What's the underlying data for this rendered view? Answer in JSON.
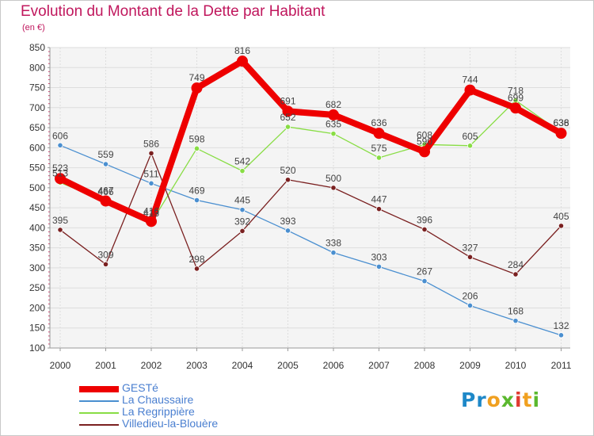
{
  "title": "Evolution du Montant de la Dette par Habitant",
  "subtitle": "(en €)",
  "logo_text": "Proxiti",
  "colors": {
    "title": "#c0175d",
    "axis": "#999999",
    "grid": "#dddddd",
    "plot_bg": "#f4f4f4",
    "tick_text": "#333333",
    "label_text": "#444444",
    "logo_letters": [
      "#1e88c8",
      "#1e88c8",
      "#f0a020",
      "#5bb82e",
      "#e03a30",
      "#f0a020",
      "#5bb82e"
    ]
  },
  "chart_data": {
    "type": "line",
    "xlabel": "",
    "ylabel": "",
    "ylim": [
      100,
      850
    ],
    "yticks": [
      100,
      150,
      200,
      250,
      300,
      350,
      400,
      450,
      500,
      550,
      600,
      650,
      700,
      750,
      800,
      850
    ],
    "x": [
      "2000",
      "2001",
      "2002",
      "2003",
      "2004",
      "2005",
      "2006",
      "2007",
      "2008",
      "2009",
      "2010",
      "2011"
    ],
    "grid": true,
    "legend_position": "bottom-left",
    "series": [
      {
        "name": "GESTé",
        "color": "#ee0000",
        "values": [
          523,
          467,
          416,
          749,
          816,
          691,
          682,
          636,
          590,
          744,
          699,
          636
        ],
        "labels": [
          "523",
          "467",
          "416",
          "749",
          "816",
          "691",
          "682",
          "636",
          "590",
          "744",
          "699",
          "636"
        ]
      },
      {
        "name": "La Chaussaire",
        "color": "#4a8fd0",
        "values": [
          606,
          559,
          511,
          469,
          445,
          393,
          338,
          303,
          267,
          206,
          168,
          132
        ],
        "labels": [
          "606",
          "559",
          "511",
          "469",
          "445",
          "393",
          "338",
          "303",
          "267",
          "206",
          "168",
          "132"
        ]
      },
      {
        "name": "La Regrippière",
        "color": "#88dd44",
        "values": [
          513,
          466,
          413,
          598,
          542,
          652,
          635,
          575,
          608,
          605,
          718,
          638
        ],
        "labels": [
          "513",
          "466",
          "413",
          "598",
          "542",
          "652",
          "635",
          "575",
          "608",
          "605",
          "718",
          "638"
        ]
      },
      {
        "name": "Villedieu-la-Blouère",
        "color": "#7a2020",
        "values": [
          395,
          309,
          586,
          298,
          392,
          520,
          500,
          447,
          396,
          327,
          284,
          405
        ],
        "labels": [
          "395",
          "309",
          "586",
          "298",
          "392",
          "520",
          "500",
          "447",
          "396",
          "327",
          "284",
          "405"
        ]
      }
    ]
  }
}
